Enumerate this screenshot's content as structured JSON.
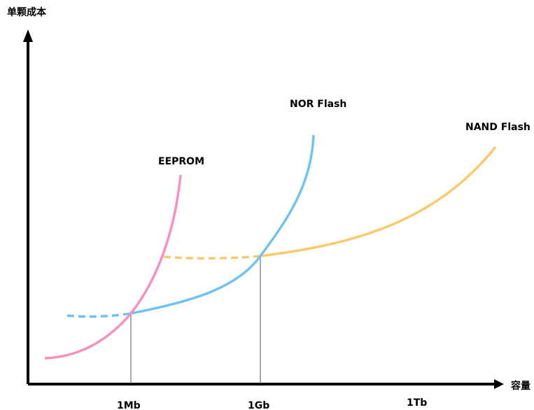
{
  "axes": {
    "y_title": "单颗成本",
    "x_title": "容量"
  },
  "ticks": [
    "1Mb",
    "1Gb",
    "1Tb"
  ],
  "curves": {
    "eeprom": {
      "label": "EEPROM",
      "color": "#f590bf"
    },
    "nor": {
      "label": "NOR Flash",
      "color": "#6ec3f0"
    },
    "nand": {
      "label": "NAND Flash",
      "color": "#f8ca6c"
    }
  }
}
